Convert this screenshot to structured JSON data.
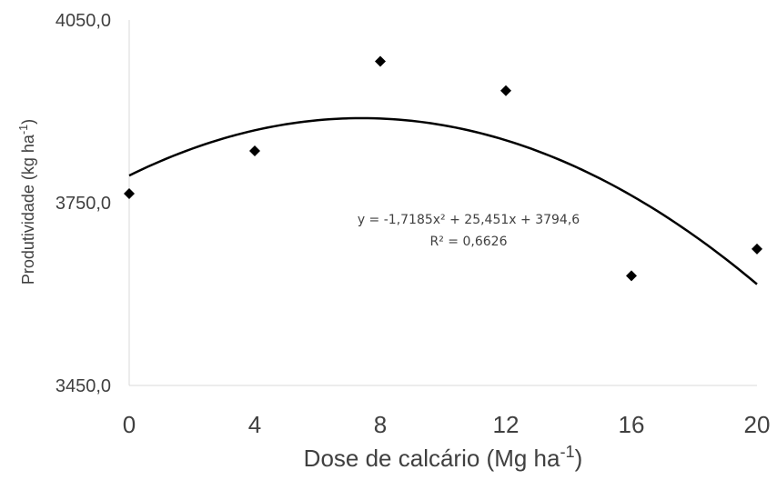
{
  "chart_data": {
    "type": "scatter",
    "xlabel": "Dose de calcário (Mg ha-1)",
    "ylabel": "Produtividade (kg ha-1)",
    "xlim": [
      0,
      20
    ],
    "ylim": [
      3450.0,
      4050.0
    ],
    "x_ticks": [
      "0",
      "4",
      "8",
      "12",
      "16",
      "20"
    ],
    "y_ticks": [
      "4050,0",
      "3750,0",
      "3450,0"
    ],
    "grid": false,
    "series": [
      {
        "marker": "diamond",
        "color": "#000000",
        "points": [
          {
            "x": 0,
            "y": 3765
          },
          {
            "x": 4,
            "y": 3835
          },
          {
            "x": 8,
            "y": 3982
          },
          {
            "x": 12,
            "y": 3934
          },
          {
            "x": 16,
            "y": 3630
          },
          {
            "x": 20,
            "y": 3674
          }
        ]
      }
    ],
    "trendline": {
      "type": "polynomial",
      "coefficients": {
        "a": -1.7185,
        "b": 25.451,
        "c": 3794.6
      },
      "equation": "y = -1,7185x² + 25,451x + 3794,6",
      "r2": "R² = 0,6626"
    }
  }
}
